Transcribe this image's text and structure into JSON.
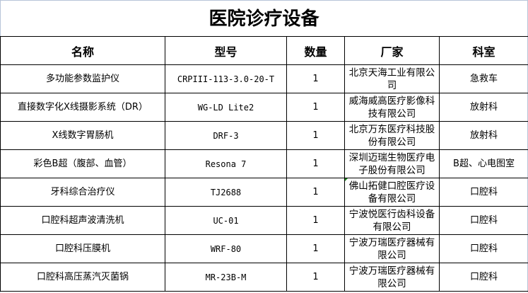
{
  "title": "医院诊疗设备",
  "headers": [
    "名称",
    "型号",
    "数量",
    "厂家",
    "科室"
  ],
  "rows": [
    {
      "name": "多功能参数监护仪",
      "model": "CRPIII-113-3.0-20-T",
      "qty": "1",
      "manufacturer": "北京天海工业有限公司",
      "dept": "急救车"
    },
    {
      "name": "直接数字化X线摄影系统（DR）",
      "model": "WG-LD Lite2",
      "qty": "1",
      "manufacturer": "威海威高医疗影像科技有限公司",
      "dept": "放射科"
    },
    {
      "name": "X线数字胃肠机",
      "model": "DRF-3",
      "qty": "1",
      "manufacturer": "北京万东医疗科技股份有限公司",
      "dept": "放射科"
    },
    {
      "name": "彩色B超（腹部、血管）",
      "model": "Resona 7",
      "qty": "1",
      "manufacturer": "深圳迈瑞生物医疗电子股份有限公司",
      "dept": "B超、心电图室"
    },
    {
      "name": "牙科综合治疗仪",
      "model": "TJ2688",
      "qty": "1",
      "manufacturer": "佛山拓健口腔医疗设备有限公司",
      "dept": "口腔科"
    },
    {
      "name": "口腔科超声波清洗机",
      "model": "UC-01",
      "qty": "1",
      "manufacturer": "宁波悦医行齿科设备有限公司",
      "dept": "口腔科"
    },
    {
      "name": "口腔科压膜机",
      "model": "WRF-80",
      "qty": "1",
      "manufacturer": "宁波万瑞医疗器械有限公司",
      "dept": "口腔科"
    },
    {
      "name": "口腔科高压蒸汽灭菌锅",
      "model": "MR-23B-M",
      "qty": "1",
      "manufacturer": "宁波万瑞医疗器械有限公司",
      "dept": "口腔科"
    }
  ]
}
